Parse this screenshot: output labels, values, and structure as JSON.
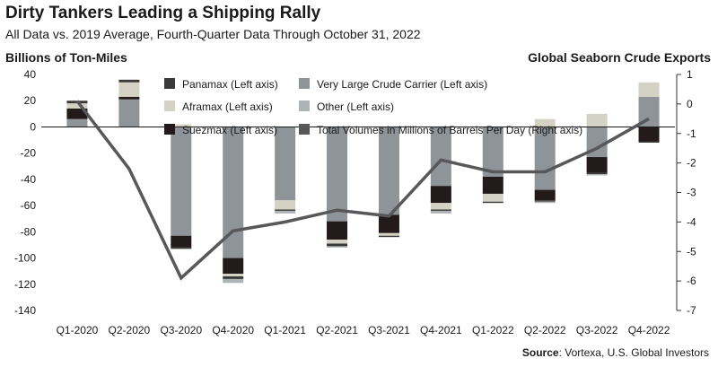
{
  "header": {
    "title": "Dirty Tankers Leading a Shipping Rally",
    "subtitle": "All Data vs. 2019 Average, Fourth-Quarter Data Through October 31, 2022",
    "left_axis_title": "Billions of Ton-Miles",
    "right_axis_title": "Global Seaborn Crude Exports"
  },
  "source": {
    "label": "Source",
    "text": ": Vortexa, U.S. Global Investors"
  },
  "chart_data": {
    "type": "bar",
    "stacked": true,
    "categories": [
      "Q1-2020",
      "Q2-2020",
      "Q3-2020",
      "Q4-2020",
      "Q1-2021",
      "Q2-2021",
      "Q3-2021",
      "Q4-2021",
      "Q1-2022",
      "Q2-2022",
      "Q3-2022",
      "Q4-2022"
    ],
    "ylim": [
      -140,
      40
    ],
    "yticks": [
      40,
      20,
      0,
      -20,
      -40,
      -60,
      -80,
      -100,
      -120,
      -140
    ],
    "y2lim": [
      -7,
      1
    ],
    "y2ticks": [
      1,
      0,
      -1,
      -2,
      -3,
      -4,
      -5,
      -6,
      -7
    ],
    "legend_position": "top",
    "colors": {
      "Panamax": "#3a3a3a",
      "Aframax": "#d4d2c4",
      "Suezmax": "#231a1c",
      "Very Large Crude Carrier": "#8e9497",
      "Other": "#aeb3b5",
      "Total Volumes": "#58585a"
    },
    "legend": [
      {
        "key": "Panamax",
        "label": "Panamax (Left axis)"
      },
      {
        "key": "Very Large Crude Carrier",
        "label": "Very Large Crude Carrier (Left axis)"
      },
      {
        "key": "Aframax",
        "label": "Aframax (Left axis)"
      },
      {
        "key": "Other",
        "label": "Other (Left axis)"
      },
      {
        "key": "Suezmax",
        "label": "Suezmax (Left axis)"
      },
      {
        "key": "Total Volumes",
        "label": "Total Volumes in Millions of Barrels Per Day (Right axis)"
      }
    ],
    "series": [
      {
        "name": "Very Large Crude Carrier",
        "values": [
          6,
          21,
          -83,
          -100,
          -56,
          -72,
          -67,
          -45,
          -38,
          -48,
          -23,
          23
        ]
      },
      {
        "name": "Suezmax",
        "values": [
          8,
          2,
          -9,
          -12,
          0,
          -14,
          -14,
          -13,
          -13,
          -8,
          -12,
          -11
        ]
      },
      {
        "name": "Aframax",
        "values": [
          4,
          11,
          2,
          -2,
          -7,
          -3,
          -2,
          -5,
          -6,
          6,
          10,
          11
        ]
      },
      {
        "name": "Panamax",
        "values": [
          2,
          2,
          -1,
          -2,
          -1,
          -2,
          -1,
          -1,
          -1,
          -1,
          -1,
          -1
        ]
      },
      {
        "name": "Other",
        "values": [
          0,
          0,
          0,
          -3,
          -2,
          -1,
          0,
          -2,
          0,
          -1,
          -1,
          0
        ]
      },
      {
        "name": "Total Volumes",
        "axis": "right",
        "values": [
          0.1,
          -2.2,
          -5.9,
          -4.3,
          -4.0,
          -3.6,
          -3.8,
          -1.9,
          -2.3,
          -2.3,
          -1.5,
          -0.5
        ]
      }
    ]
  }
}
